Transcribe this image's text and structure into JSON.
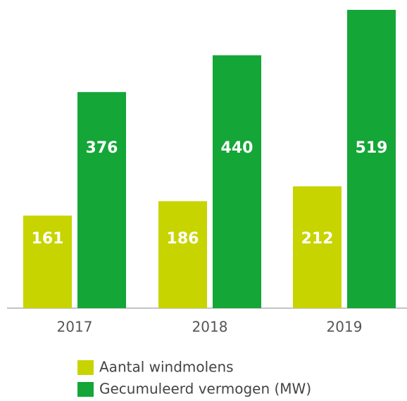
{
  "chart_data": {
    "type": "bar",
    "categories": [
      "2017",
      "2018",
      "2019"
    ],
    "series": [
      {
        "name": "Aantal windmolens",
        "color": "#c8d400",
        "values": [
          161,
          186,
          212
        ]
      },
      {
        "name": "Gecumuleerd vermogen (MW)",
        "color": "#14a637",
        "values": [
          376,
          440,
          519
        ]
      }
    ]
  }
}
